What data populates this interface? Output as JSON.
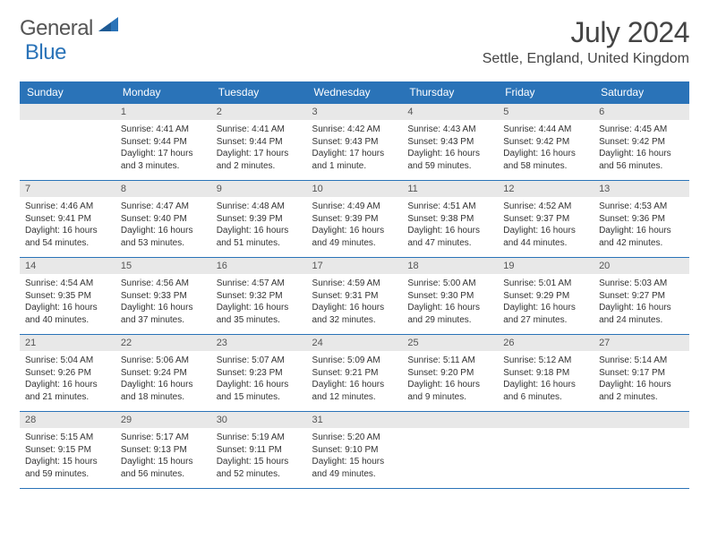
{
  "logo": {
    "word1": "General",
    "word2": "Blue"
  },
  "title": {
    "month": "July 2024",
    "location": "Settle, England, United Kingdom"
  },
  "colors": {
    "accent": "#2a73b8",
    "daynum_bg": "#e8e8e8",
    "text": "#333333",
    "logo_gray": "#555555"
  },
  "day_headers": [
    "Sunday",
    "Monday",
    "Tuesday",
    "Wednesday",
    "Thursday",
    "Friday",
    "Saturday"
  ],
  "weeks": [
    [
      {
        "n": "",
        "sr": "",
        "ss": "",
        "dl": ""
      },
      {
        "n": "1",
        "sr": "Sunrise: 4:41 AM",
        "ss": "Sunset: 9:44 PM",
        "dl": "Daylight: 17 hours and 3 minutes."
      },
      {
        "n": "2",
        "sr": "Sunrise: 4:41 AM",
        "ss": "Sunset: 9:44 PM",
        "dl": "Daylight: 17 hours and 2 minutes."
      },
      {
        "n": "3",
        "sr": "Sunrise: 4:42 AM",
        "ss": "Sunset: 9:43 PM",
        "dl": "Daylight: 17 hours and 1 minute."
      },
      {
        "n": "4",
        "sr": "Sunrise: 4:43 AM",
        "ss": "Sunset: 9:43 PM",
        "dl": "Daylight: 16 hours and 59 minutes."
      },
      {
        "n": "5",
        "sr": "Sunrise: 4:44 AM",
        "ss": "Sunset: 9:42 PM",
        "dl": "Daylight: 16 hours and 58 minutes."
      },
      {
        "n": "6",
        "sr": "Sunrise: 4:45 AM",
        "ss": "Sunset: 9:42 PM",
        "dl": "Daylight: 16 hours and 56 minutes."
      }
    ],
    [
      {
        "n": "7",
        "sr": "Sunrise: 4:46 AM",
        "ss": "Sunset: 9:41 PM",
        "dl": "Daylight: 16 hours and 54 minutes."
      },
      {
        "n": "8",
        "sr": "Sunrise: 4:47 AM",
        "ss": "Sunset: 9:40 PM",
        "dl": "Daylight: 16 hours and 53 minutes."
      },
      {
        "n": "9",
        "sr": "Sunrise: 4:48 AM",
        "ss": "Sunset: 9:39 PM",
        "dl": "Daylight: 16 hours and 51 minutes."
      },
      {
        "n": "10",
        "sr": "Sunrise: 4:49 AM",
        "ss": "Sunset: 9:39 PM",
        "dl": "Daylight: 16 hours and 49 minutes."
      },
      {
        "n": "11",
        "sr": "Sunrise: 4:51 AM",
        "ss": "Sunset: 9:38 PM",
        "dl": "Daylight: 16 hours and 47 minutes."
      },
      {
        "n": "12",
        "sr": "Sunrise: 4:52 AM",
        "ss": "Sunset: 9:37 PM",
        "dl": "Daylight: 16 hours and 44 minutes."
      },
      {
        "n": "13",
        "sr": "Sunrise: 4:53 AM",
        "ss": "Sunset: 9:36 PM",
        "dl": "Daylight: 16 hours and 42 minutes."
      }
    ],
    [
      {
        "n": "14",
        "sr": "Sunrise: 4:54 AM",
        "ss": "Sunset: 9:35 PM",
        "dl": "Daylight: 16 hours and 40 minutes."
      },
      {
        "n": "15",
        "sr": "Sunrise: 4:56 AM",
        "ss": "Sunset: 9:33 PM",
        "dl": "Daylight: 16 hours and 37 minutes."
      },
      {
        "n": "16",
        "sr": "Sunrise: 4:57 AM",
        "ss": "Sunset: 9:32 PM",
        "dl": "Daylight: 16 hours and 35 minutes."
      },
      {
        "n": "17",
        "sr": "Sunrise: 4:59 AM",
        "ss": "Sunset: 9:31 PM",
        "dl": "Daylight: 16 hours and 32 minutes."
      },
      {
        "n": "18",
        "sr": "Sunrise: 5:00 AM",
        "ss": "Sunset: 9:30 PM",
        "dl": "Daylight: 16 hours and 29 minutes."
      },
      {
        "n": "19",
        "sr": "Sunrise: 5:01 AM",
        "ss": "Sunset: 9:29 PM",
        "dl": "Daylight: 16 hours and 27 minutes."
      },
      {
        "n": "20",
        "sr": "Sunrise: 5:03 AM",
        "ss": "Sunset: 9:27 PM",
        "dl": "Daylight: 16 hours and 24 minutes."
      }
    ],
    [
      {
        "n": "21",
        "sr": "Sunrise: 5:04 AM",
        "ss": "Sunset: 9:26 PM",
        "dl": "Daylight: 16 hours and 21 minutes."
      },
      {
        "n": "22",
        "sr": "Sunrise: 5:06 AM",
        "ss": "Sunset: 9:24 PM",
        "dl": "Daylight: 16 hours and 18 minutes."
      },
      {
        "n": "23",
        "sr": "Sunrise: 5:07 AM",
        "ss": "Sunset: 9:23 PM",
        "dl": "Daylight: 16 hours and 15 minutes."
      },
      {
        "n": "24",
        "sr": "Sunrise: 5:09 AM",
        "ss": "Sunset: 9:21 PM",
        "dl": "Daylight: 16 hours and 12 minutes."
      },
      {
        "n": "25",
        "sr": "Sunrise: 5:11 AM",
        "ss": "Sunset: 9:20 PM",
        "dl": "Daylight: 16 hours and 9 minutes."
      },
      {
        "n": "26",
        "sr": "Sunrise: 5:12 AM",
        "ss": "Sunset: 9:18 PM",
        "dl": "Daylight: 16 hours and 6 minutes."
      },
      {
        "n": "27",
        "sr": "Sunrise: 5:14 AM",
        "ss": "Sunset: 9:17 PM",
        "dl": "Daylight: 16 hours and 2 minutes."
      }
    ],
    [
      {
        "n": "28",
        "sr": "Sunrise: 5:15 AM",
        "ss": "Sunset: 9:15 PM",
        "dl": "Daylight: 15 hours and 59 minutes."
      },
      {
        "n": "29",
        "sr": "Sunrise: 5:17 AM",
        "ss": "Sunset: 9:13 PM",
        "dl": "Daylight: 15 hours and 56 minutes."
      },
      {
        "n": "30",
        "sr": "Sunrise: 5:19 AM",
        "ss": "Sunset: 9:11 PM",
        "dl": "Daylight: 15 hours and 52 minutes."
      },
      {
        "n": "31",
        "sr": "Sunrise: 5:20 AM",
        "ss": "Sunset: 9:10 PM",
        "dl": "Daylight: 15 hours and 49 minutes."
      },
      {
        "n": "",
        "sr": "",
        "ss": "",
        "dl": ""
      },
      {
        "n": "",
        "sr": "",
        "ss": "",
        "dl": ""
      },
      {
        "n": "",
        "sr": "",
        "ss": "",
        "dl": ""
      }
    ]
  ]
}
